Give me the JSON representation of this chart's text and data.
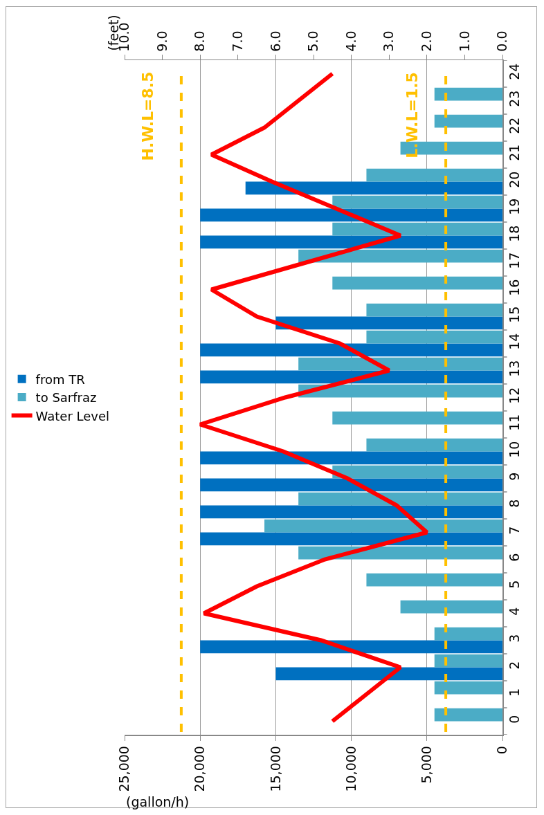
{
  "chart_data": {
    "type": "bar",
    "orientation": "horizontal",
    "xlabel": "(gallon/h)",
    "x2label": "(feet)",
    "categories": [
      "24",
      "23",
      "22",
      "21",
      "20",
      "19",
      "18",
      "17",
      "16",
      "15",
      "14",
      "13",
      "12",
      "11",
      "10",
      "9",
      "8",
      "7",
      "6",
      "5",
      "4",
      "3",
      "2",
      "1",
      "0"
    ],
    "series": [
      {
        "name": "from TR",
        "color": "#0070c0",
        "values": [
          null,
          null,
          null,
          null,
          17000,
          20000,
          20000,
          null,
          null,
          15000,
          20000,
          20000,
          null,
          null,
          20000,
          20000,
          20000,
          20000,
          null,
          null,
          null,
          20000,
          15000,
          null,
          null
        ]
      },
      {
        "name": "to Sarfraz",
        "color": "#4bacc6",
        "values": [
          null,
          4500,
          4500,
          6750,
          9000,
          11250,
          11250,
          13500,
          11250,
          9000,
          9000,
          13500,
          13500,
          11250,
          9000,
          11250,
          13500,
          15750,
          13500,
          9000,
          6750,
          4500,
          4500,
          4500,
          4500
        ]
      },
      {
        "name": "Water Level",
        "type": "line",
        "axis": "x2",
        "color": "#ff0000",
        "values": [
          4.5,
          5.4,
          6.3,
          7.7,
          6.1,
          4.4,
          2.7,
          5.2,
          7.7,
          6.5,
          4.3,
          3.0,
          5.75,
          8.0,
          5.8,
          4.1,
          2.8,
          2.0,
          4.7,
          6.5,
          7.9,
          4.8,
          2.7,
          3.6,
          4.5
        ]
      }
    ],
    "xlim": [
      25000,
      0
    ],
    "xticks": [
      {
        "value": 25000,
        "label": "25,000"
      },
      {
        "value": 20000,
        "label": "20,000"
      },
      {
        "value": 15000,
        "label": "15,000"
      },
      {
        "value": 10000,
        "label": "10,000"
      },
      {
        "value": 5000,
        "label": "5,000"
      },
      0
    ],
    "x2lim": [
      10,
      0
    ],
    "x2ticks": [
      {
        "value": 10,
        "label": "10.0"
      },
      {
        "value": 9,
        "label": "9.0"
      },
      {
        "value": 8,
        "label": "8.0"
      },
      {
        "value": 7,
        "label": "7.0"
      },
      {
        "value": 6,
        "label": "6.0"
      },
      {
        "value": 5,
        "label": "5.0"
      },
      {
        "value": 4,
        "label": "4.0"
      },
      {
        "value": 3,
        "label": "3.0"
      },
      {
        "value": 2,
        "label": "2.0"
      },
      {
        "value": 1,
        "label": "1.0"
      },
      {
        "value": 0,
        "label": "0.0"
      }
    ],
    "ref_lines": [
      {
        "axis": "x2",
        "value": 8.5,
        "label": "H.W.L=8.5",
        "color": "#ffc000",
        "line_style": "dashed"
      },
      {
        "axis": "x2",
        "value": 1.5,
        "label": "L.W.L=1.5",
        "color": "#ffc000",
        "line_style": "dashed"
      }
    ],
    "grid": "x",
    "legend": "left",
    "marker": "none",
    "line_style": "solid"
  }
}
